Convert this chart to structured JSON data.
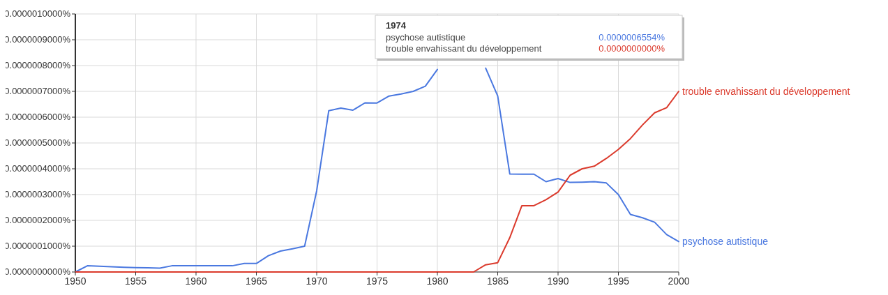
{
  "chart_data": {
    "type": "line",
    "x": [
      1950,
      1951,
      1952,
      1953,
      1954,
      1955,
      1956,
      1957,
      1958,
      1959,
      1960,
      1961,
      1962,
      1963,
      1964,
      1965,
      1966,
      1967,
      1968,
      1969,
      1970,
      1971,
      1972,
      1973,
      1974,
      1975,
      1976,
      1977,
      1978,
      1979,
      1980,
      1981,
      1982,
      1983,
      1984,
      1985,
      1986,
      1987,
      1988,
      1989,
      1990,
      1991,
      1992,
      1993,
      1994,
      1995,
      1996,
      1997,
      1998,
      1999,
      2000
    ],
    "series": [
      {
        "name": "psychose autistique",
        "color": "#4a78e0",
        "values": [
          0,
          2.4e-08,
          2.2e-08,
          2e-08,
          1.8e-08,
          1.7e-08,
          1.6e-08,
          1.5e-08,
          2.4e-08,
          2.4e-08,
          2.4e-08,
          2.4e-08,
          2.4e-08,
          2.4e-08,
          3.3e-08,
          3.3e-08,
          6.3e-08,
          8.1e-08,
          9e-08,
          1e-07,
          3.15e-07,
          6.25e-07,
          6.35e-07,
          6.27e-07,
          6.554e-07,
          6.55e-07,
          6.82e-07,
          6.9e-07,
          7e-07,
          7.2e-07,
          7.85e-07,
          null,
          null,
          null,
          7.9e-07,
          6.82e-07,
          3.8e-07,
          3.79e-07,
          3.79e-07,
          3.5e-07,
          3.62e-07,
          3.47e-07,
          3.48e-07,
          3.5e-07,
          3.45e-07,
          3e-07,
          2.23e-07,
          2.1e-07,
          1.93e-07,
          1.45e-07,
          1.18e-07
        ]
      },
      {
        "name": "trouble envahissant du développement",
        "color": "#db3a2c",
        "values": [
          0,
          0,
          0,
          0,
          0,
          0,
          0,
          0,
          0,
          0,
          0,
          0,
          0,
          0,
          0,
          0,
          0,
          0,
          0,
          0,
          0,
          0,
          0,
          0,
          0,
          0,
          0,
          0,
          0,
          0,
          0,
          0,
          0,
          0,
          2.8e-08,
          3.6e-08,
          1.33e-07,
          2.57e-07,
          2.57e-07,
          2.8e-07,
          3.1e-07,
          3.75e-07,
          4e-07,
          4.1e-07,
          4.4e-07,
          4.75e-07,
          5.17e-07,
          5.7e-07,
          6.17e-07,
          6.37e-07,
          7e-07
        ]
      }
    ],
    "xlim": [
      1950,
      2000
    ],
    "xticks": [
      1950,
      1955,
      1960,
      1965,
      1970,
      1975,
      1980,
      1985,
      1990,
      1995,
      2000
    ],
    "ylim": [
      0,
      1e-06
    ],
    "yticks": [
      {
        "value": 0,
        "label": "0.0000000000%"
      },
      {
        "value": 1e-07,
        "label": "0.0000001000%"
      },
      {
        "value": 2e-07,
        "label": "0.0000002000%"
      },
      {
        "value": 3e-07,
        "label": "0.0000003000%"
      },
      {
        "value": 4e-07,
        "label": "0.0000004000%"
      },
      {
        "value": 5e-07,
        "label": "0.0000005000%"
      },
      {
        "value": 6e-07,
        "label": "0.0000006000%"
      },
      {
        "value": 7e-07,
        "label": "0.0000007000%"
      },
      {
        "value": 8e-07,
        "label": "0.0000008000%"
      },
      {
        "value": 9e-07,
        "label": "0.0000009000%"
      },
      {
        "value": 1e-06,
        "label": "0.0000010000%"
      }
    ],
    "grid": true,
    "annotations": [
      "1974",
      "psychose autistique",
      "0.0000006554%",
      "trouble envahissant du développement",
      "0.0000000000%"
    ]
  }
}
